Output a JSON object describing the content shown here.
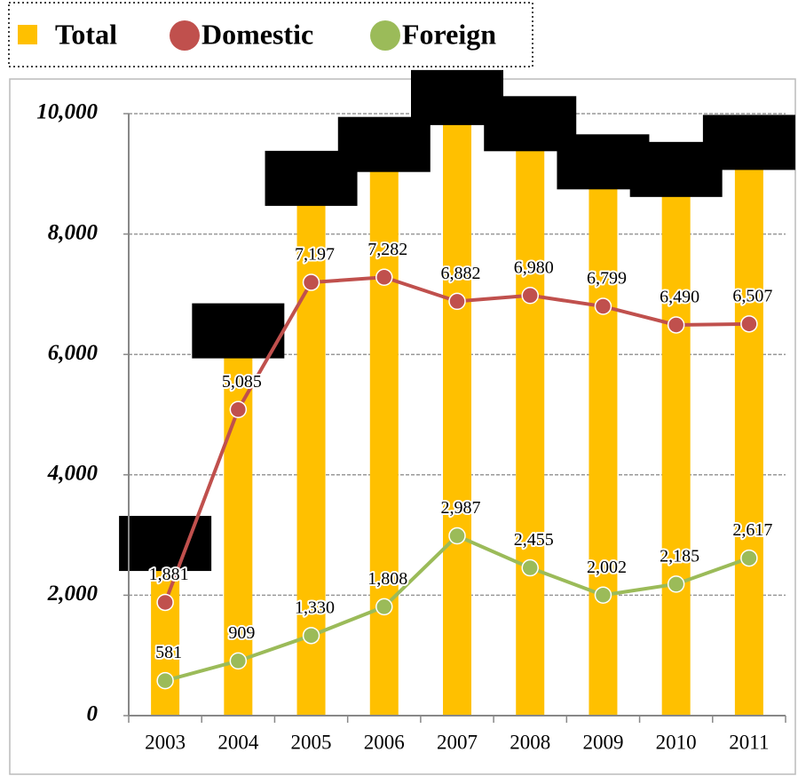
{
  "chart_data": {
    "type": "bar",
    "categories": [
      "2003",
      "2004",
      "2005",
      "2006",
      "2007",
      "2008",
      "2009",
      "2010",
      "2011"
    ],
    "series": [
      {
        "name": "Total",
        "type": "bar",
        "color": "#ffc000",
        "values": [
          2462,
          5994,
          8527,
          9090,
          9869,
          9435,
          8801,
          8675,
          9124
        ]
      },
      {
        "name": "Domestic",
        "type": "line",
        "color": "#c0504d",
        "values": [
          1881,
          5085,
          7197,
          7282,
          6882,
          6980,
          6799,
          6490,
          6507
        ],
        "value_labels": [
          "1,881",
          "5,085",
          "7,197",
          "7,282",
          "6,882",
          "6,980",
          "6,799",
          "6,490",
          "6,507"
        ]
      },
      {
        "name": "Foreign",
        "type": "line",
        "color": "#9bbb59",
        "values": [
          581,
          909,
          1330,
          1808,
          2987,
          2455,
          2002,
          2185,
          2617
        ],
        "value_labels": [
          "581",
          "909",
          "1,330",
          "1,808",
          "2,987",
          "2,455",
          "2,002",
          "2,185",
          "2,617"
        ]
      }
    ],
    "ylim": [
      0,
      10000
    ],
    "yticks": [
      0,
      {
        "value": 2000,
        "label": "2,000"
      },
      {
        "value": 4000,
        "label": "4,000"
      },
      {
        "value": 6000,
        "label": "6,000"
      },
      {
        "value": 8000,
        "label": "8,000"
      },
      {
        "value": 10000,
        "label": "10,000"
      }
    ],
    "grid": true,
    "legend": "top"
  }
}
